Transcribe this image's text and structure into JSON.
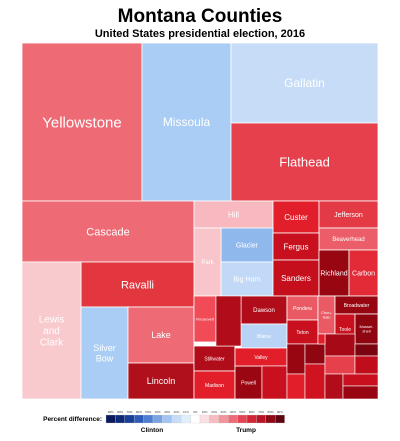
{
  "chart_data": {
    "type": "treemap",
    "title": "Montana Counties",
    "subtitle": "United States presidential election, 2016",
    "legend": {
      "label": "Percent difference:",
      "left_label": "Clinton",
      "right_label": "Trump",
      "ticks": [
        "90%",
        "80%",
        "70%",
        "60%",
        "50%",
        "40%",
        "30%",
        "20%",
        "10%",
        "0%",
        "10%",
        "20%",
        "30%",
        "40%",
        "50%",
        "60%",
        "70%",
        "80%",
        "90%"
      ],
      "colors": [
        "#0a1a5a",
        "#0d2a7a",
        "#1a3f99",
        "#2f5bb8",
        "#4f7ed0",
        "#7aa3e3",
        "#a3c4f2",
        "#c7dcf7",
        "#e3eefb",
        "#ffffff",
        "#fbe0e3",
        "#f7bcc2",
        "#f2949c",
        "#eb6b78",
        "#e34556",
        "#d42535",
        "#b81424",
        "#8e0a17",
        "#5e0610"
      ]
    },
    "counties": [
      {
        "name": "Yellowstone",
        "color": "#ee6a74"
      },
      {
        "name": "Missoula",
        "color": "#a9cdf4"
      },
      {
        "name": "Gallatin",
        "color": "#c7dcf7"
      },
      {
        "name": "Flathead",
        "color": "#e6404c"
      },
      {
        "name": "Cascade",
        "color": "#ee6a74"
      },
      {
        "name": "Hill",
        "color": "#f7b9bf"
      },
      {
        "name": "Custer",
        "color": "#e21e2b"
      },
      {
        "name": "Jefferson",
        "color": "#e33a46"
      },
      {
        "name": "Beaverhead",
        "color": "#eb5d68"
      },
      {
        "name": "Glacier",
        "color": "#8fb9ec"
      },
      {
        "name": "Fergus",
        "color": "#c8101e"
      },
      {
        "name": "Park",
        "color": "#f7c5ca"
      },
      {
        "name": "Big Horn",
        "color": "#c1d9f6"
      },
      {
        "name": "Sanders",
        "color": "#c60f1c"
      },
      {
        "name": "Richland",
        "color": "#970611"
      },
      {
        "name": "Carbon",
        "color": "#e22b37"
      },
      {
        "name": "Ravalli",
        "color": "#e2373f"
      },
      {
        "name": "Lewis and Clark",
        "color": "#f8c9cd"
      },
      {
        "name": "Silver Bow",
        "color": "#a9cdf4"
      },
      {
        "name": "Lake",
        "color": "#ee6a74"
      },
      {
        "name": "Lincoln",
        "color": "#b0101c"
      },
      {
        "name": "Roosevelt",
        "color": "#f04b57"
      },
      {
        "name": "Stillwater",
        "color": "#b10c1a"
      },
      {
        "name": "Madison",
        "color": "#e21e2b"
      },
      {
        "name": "Powell",
        "color": "#9a0713"
      },
      {
        "name": "Dawson",
        "color": "#b00c19"
      },
      {
        "name": "Blaine",
        "color": "#b9d3f4"
      },
      {
        "name": "Valley",
        "color": "#e21e2b"
      },
      {
        "name": "Pondera",
        "color": "#e95a64"
      },
      {
        "name": "Teton",
        "color": "#c8101e"
      },
      {
        "name": "Chouteau",
        "color": "#e95a64"
      },
      {
        "name": "Broadwater",
        "color": "#970611"
      },
      {
        "name": "Toole",
        "color": "#c8101e"
      },
      {
        "name": "Musselshell",
        "color": "#8f0510"
      }
    ]
  }
}
